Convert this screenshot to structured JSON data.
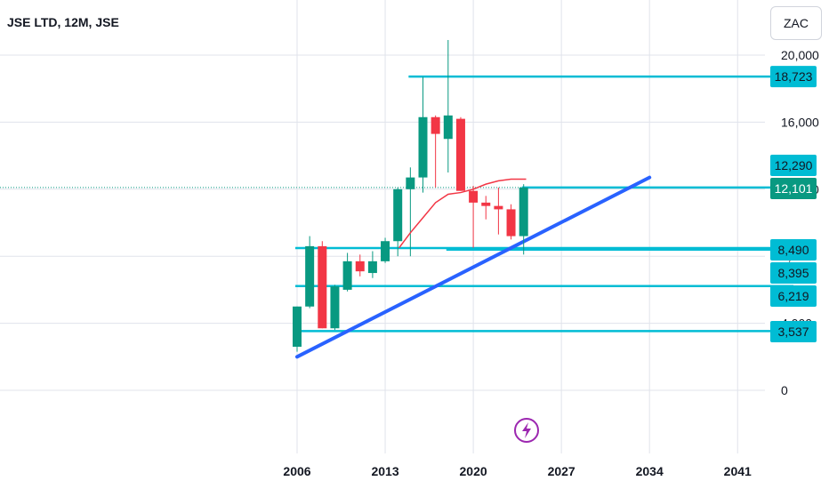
{
  "header": {
    "title": "JSE LTD, 12M, JSE",
    "currency": "ZAC"
  },
  "colors": {
    "up": "#089981",
    "down": "#f23645",
    "hline": "#00bcd4",
    "trendline": "#2962ff",
    "ma": "#f23645",
    "last_price": "#089981",
    "grid": "#e0e3eb",
    "axis_text": "#131722",
    "logo": "#9c27b0"
  },
  "icons": {
    "logo": "lightning-bolt-icon"
  },
  "chart_data": {
    "type": "candlestick",
    "title": "JSE LTD, 12M, JSE",
    "currency": "ZAC",
    "xlim": [
      2006,
      2044
    ],
    "ylim": [
      -3000,
      21500
    ],
    "y_ticks": [
      "20,000",
      "16,000",
      "12,000",
      "8,000",
      "4,000",
      "0"
    ],
    "y_tick_values": [
      20000,
      16000,
      12000,
      8000,
      4000,
      0
    ],
    "x_ticks": [
      "2006",
      "2013",
      "2020",
      "2027",
      "2034",
      "2041"
    ],
    "x_tick_values": [
      2006,
      2013,
      2020,
      2027,
      2034,
      2041
    ],
    "grid": true,
    "candles": [
      {
        "year": 2006,
        "open": 2600,
        "high": 5000,
        "low": 2300,
        "close": 5000
      },
      {
        "year": 2007,
        "open": 5000,
        "high": 9200,
        "low": 4900,
        "close": 8600
      },
      {
        "year": 2008,
        "open": 8600,
        "high": 8900,
        "low": 3700,
        "close": 3700
      },
      {
        "year": 2009,
        "open": 3700,
        "high": 6300,
        "low": 3600,
        "close": 6200
      },
      {
        "year": 2010,
        "open": 6000,
        "high": 8200,
        "low": 5900,
        "close": 7700
      },
      {
        "year": 2011,
        "open": 7700,
        "high": 8100,
        "low": 6800,
        "close": 7100
      },
      {
        "year": 2012,
        "open": 7000,
        "high": 8300,
        "low": 6700,
        "close": 7700
      },
      {
        "year": 2013,
        "open": 7700,
        "high": 9100,
        "low": 7600,
        "close": 8900
      },
      {
        "year": 2014,
        "open": 8900,
        "high": 12100,
        "low": 8000,
        "close": 12000
      },
      {
        "year": 2015,
        "open": 12000,
        "high": 13300,
        "low": 8000,
        "close": 12700
      },
      {
        "year": 2016,
        "open": 12700,
        "high": 18700,
        "low": 11800,
        "close": 16300
      },
      {
        "year": 2017,
        "open": 16300,
        "high": 16400,
        "low": 12100,
        "close": 15300
      },
      {
        "year": 2018,
        "open": 15000,
        "high": 20900,
        "low": 13000,
        "close": 16400
      },
      {
        "year": 2019,
        "open": 16200,
        "high": 16300,
        "low": 11900,
        "close": 11900
      },
      {
        "year": 2020,
        "open": 11900,
        "high": 12200,
        "low": 8500,
        "close": 11200
      },
      {
        "year": 2021,
        "open": 11200,
        "high": 11600,
        "low": 10200,
        "close": 11000
      },
      {
        "year": 2022,
        "open": 11000,
        "high": 12100,
        "low": 9300,
        "close": 10800
      },
      {
        "year": 2023,
        "open": 10800,
        "high": 11100,
        "low": 9000,
        "close": 9200
      },
      {
        "year": 2024,
        "open": 9200,
        "high": 12300,
        "low": 8100,
        "close": 12101
      }
    ],
    "moving_average": {
      "points": [
        [
          2014.1,
          8500
        ],
        [
          2015,
          9400
        ],
        [
          2016,
          10300
        ],
        [
          2017,
          11200
        ],
        [
          2018,
          11700
        ],
        [
          2019,
          11800
        ],
        [
          2020,
          12000
        ],
        [
          2021,
          12300
        ],
        [
          2022,
          12500
        ],
        [
          2023,
          12600
        ],
        [
          2024.2,
          12600
        ]
      ]
    },
    "horizontal_lines": [
      {
        "value": 18723,
        "label": "18,723",
        "start": 2015
      },
      {
        "value": 12101,
        "label": "12,101",
        "start": 2024,
        "last_price": true
      },
      {
        "value": 8490,
        "label": "8,490",
        "start": 2006
      },
      {
        "value": 8395,
        "label": "8,395",
        "start": 2018
      },
      {
        "value": 6219,
        "label": "6,219",
        "start": 2006
      },
      {
        "value": 3537,
        "label": "3,537",
        "start": 2006
      }
    ],
    "axis_labels_extra": [
      {
        "value": 12290,
        "label": "12,290"
      }
    ],
    "trendline": {
      "from": [
        2006,
        2000
      ],
      "to": [
        2034,
        12700
      ]
    }
  }
}
